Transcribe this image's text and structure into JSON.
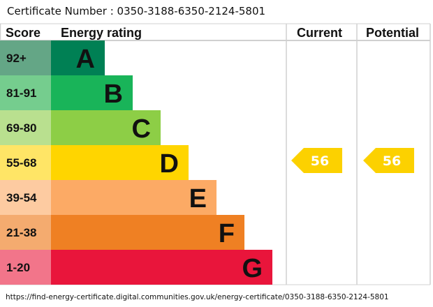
{
  "certificate": "Certificate Number : 0350-3188-6350-2124-5801",
  "url": "https://find-energy-certificate.digital.communities.gov.uk/energy-certificate/0350-3188-6350-2124-5801",
  "chart_data": {
    "type": "bar",
    "headers": {
      "score": "Score",
      "rating": "Energy rating",
      "current": "Current",
      "potential": "Potential"
    },
    "bands": [
      {
        "letter": "A",
        "score": "92+",
        "color": "#008054",
        "score_color": "#64a686"
      },
      {
        "letter": "B",
        "score": "81-91",
        "color": "#19b459",
        "score_color": "#75cd8e"
      },
      {
        "letter": "C",
        "score": "69-80",
        "color": "#8dce46",
        "score_color": "#b9e08f"
      },
      {
        "letter": "D",
        "score": "55-68",
        "color": "#ffd500",
        "score_color": "#ffe566"
      },
      {
        "letter": "E",
        "score": "39-54",
        "color": "#fcaa65",
        "score_color": "#fdcba1"
      },
      {
        "letter": "F",
        "score": "21-38",
        "color": "#ef8023",
        "score_color": "#f4ab6f"
      },
      {
        "letter": "G",
        "score": "1-20",
        "color": "#e9153b",
        "score_color": "#f2758a"
      }
    ],
    "current": {
      "value": 56,
      "band": "D",
      "color": "#fcd100"
    },
    "potential": {
      "value": 56,
      "band": "D",
      "color": "#fcd100"
    }
  }
}
